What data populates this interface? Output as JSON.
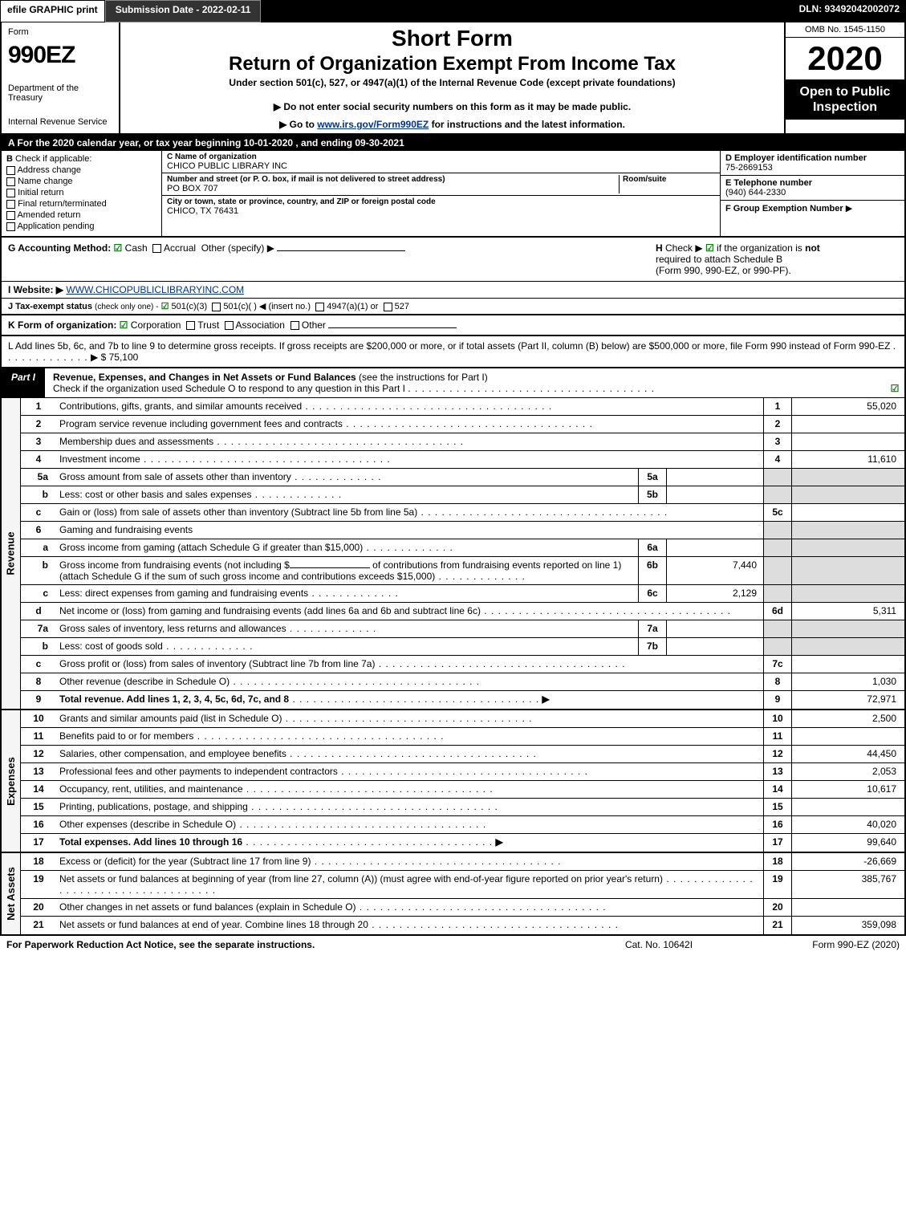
{
  "top": {
    "efile": "efile GRAPHIC print",
    "submission": "Submission Date - 2022-02-11",
    "dln": "DLN: 93492042002072"
  },
  "header": {
    "form": "Form",
    "formnum": "990EZ",
    "dept": "Department of the Treasury",
    "irs": "Internal Revenue Service",
    "short": "Short Form",
    "return": "Return of Organization Exempt From Income Tax",
    "under": "Under section 501(c), 527, or 4947(a)(1) of the Internal Revenue Code (except private foundations)",
    "note1": "▶ Do not enter social security numbers on this form as it may be made public.",
    "note2_pre": "▶ Go to ",
    "note2_link": "www.irs.gov/Form990EZ",
    "note2_post": " for instructions and the latest information.",
    "omb": "OMB No. 1545-1150",
    "year": "2020",
    "open": "Open to Public Inspection"
  },
  "lineA": "A For the 2020 calendar year, or tax year beginning 10-01-2020 , and ending 09-30-2021",
  "b": {
    "lbl": "B",
    "check": "Check if applicable:",
    "opts": [
      "Address change",
      "Name change",
      "Initial return",
      "Final return/terminated",
      "Amended return",
      "Application pending"
    ]
  },
  "c": {
    "name_lbl": "C Name of organization",
    "name": "CHICO PUBLIC LIBRARY INC",
    "addr_lbl": "Number and street (or P. O. box, if mail is not delivered to street address)",
    "addr": "PO BOX 707",
    "room_lbl": "Room/suite",
    "city_lbl": "City or town, state or province, country, and ZIP or foreign postal code",
    "city": "CHICO, TX  76431"
  },
  "d": {
    "ein_lbl": "D Employer identification number",
    "ein": "75-2669153",
    "tel_lbl": "E Telephone number",
    "tel": "(940) 644-2330",
    "group_lbl": "F Group Exemption Number",
    "arrow": "▶"
  },
  "g": {
    "lbl": "G Accounting Method:",
    "cash": "Cash",
    "accrual": "Accrual",
    "other": "Other (specify) ▶",
    "h_lbl": "H",
    "h_txt1": "Check ▶",
    "h_txt2": "if the organization is",
    "h_not": "not",
    "h_txt3": "required to attach Schedule B",
    "h_txt4": "(Form 990, 990-EZ, or 990-PF)."
  },
  "i": {
    "lbl": "I Website: ▶",
    "url": "WWW.CHICOPUBLICLIBRARYINC.COM"
  },
  "j": {
    "lbl": "J Tax-exempt status",
    "sub": "(check only one) -",
    "o1": "501(c)(3)",
    "o2": "501(c)(  ) ◀ (insert no.)",
    "o3": "4947(a)(1) or",
    "o4": "527"
  },
  "k": {
    "lbl": "K Form of organization:",
    "o1": "Corporation",
    "o2": "Trust",
    "o3": "Association",
    "o4": "Other"
  },
  "l": {
    "txt": "L Add lines 5b, 6c, and 7b to line 9 to determine gross receipts. If gross receipts are $200,000 or more, or if total assets (Part II, column (B) below) are $500,000 or more, file Form 990 instead of Form 990-EZ",
    "arrow": "▶",
    "amt": "$ 75,100"
  },
  "part1": {
    "tag": "Part I",
    "title": "Revenue, Expenses, and Changes in Net Assets or Fund Balances",
    "paren": "(see the instructions for Part I)",
    "check": "Check if the organization used Schedule O to respond to any question in this Part I"
  },
  "rev": [
    {
      "n": "1",
      "t": "Contributions, gifts, grants, and similar amounts received",
      "c": "1",
      "v": "55,020"
    },
    {
      "n": "2",
      "t": "Program service revenue including government fees and contracts",
      "c": "2",
      "v": ""
    },
    {
      "n": "3",
      "t": "Membership dues and assessments",
      "c": "3",
      "v": ""
    },
    {
      "n": "4",
      "t": "Investment income",
      "c": "4",
      "v": "11,610"
    }
  ],
  "rev5a": {
    "n": "5a",
    "t": "Gross amount from sale of assets other than inventory",
    "mc": "5a"
  },
  "rev5b": {
    "n": "b",
    "t": "Less: cost or other basis and sales expenses",
    "mc": "5b"
  },
  "rev5c": {
    "n": "c",
    "t": "Gain or (loss) from sale of assets other than inventory (Subtract line 5b from line 5a)",
    "c": "5c",
    "v": ""
  },
  "rev6": {
    "n": "6",
    "t": "Gaming and fundraising events"
  },
  "rev6a": {
    "n": "a",
    "t": "Gross income from gaming (attach Schedule G if greater than $15,000)",
    "mc": "6a"
  },
  "rev6b": {
    "n": "b",
    "t1": "Gross income from fundraising events (not including $",
    "t2": "of contributions from fundraising events reported on line 1) (attach Schedule G if the sum of such gross income and contributions exceeds $15,000)",
    "mc": "6b",
    "mv": "7,440"
  },
  "rev6c": {
    "n": "c",
    "t": "Less: direct expenses from gaming and fundraising events",
    "mc": "6c",
    "mv": "2,129"
  },
  "rev6d": {
    "n": "d",
    "t": "Net income or (loss) from gaming and fundraising events (add lines 6a and 6b and subtract line 6c)",
    "c": "6d",
    "v": "5,311"
  },
  "rev7a": {
    "n": "7a",
    "t": "Gross sales of inventory, less returns and allowances",
    "mc": "7a"
  },
  "rev7b": {
    "n": "b",
    "t": "Less: cost of goods sold",
    "mc": "7b"
  },
  "rev7c": {
    "n": "c",
    "t": "Gross profit or (loss) from sales of inventory (Subtract line 7b from line 7a)",
    "c": "7c",
    "v": ""
  },
  "rev8": {
    "n": "8",
    "t": "Other revenue (describe in Schedule O)",
    "c": "8",
    "v": "1,030"
  },
  "rev9": {
    "n": "9",
    "t": "Total revenue. Add lines 1, 2, 3, 4, 5c, 6d, 7c, and 8",
    "c": "9",
    "v": "72,971",
    "bold": true
  },
  "exp": [
    {
      "n": "10",
      "t": "Grants and similar amounts paid (list in Schedule O)",
      "c": "10",
      "v": "2,500"
    },
    {
      "n": "11",
      "t": "Benefits paid to or for members",
      "c": "11",
      "v": ""
    },
    {
      "n": "12",
      "t": "Salaries, other compensation, and employee benefits",
      "c": "12",
      "v": "44,450"
    },
    {
      "n": "13",
      "t": "Professional fees and other payments to independent contractors",
      "c": "13",
      "v": "2,053"
    },
    {
      "n": "14",
      "t": "Occupancy, rent, utilities, and maintenance",
      "c": "14",
      "v": "10,617"
    },
    {
      "n": "15",
      "t": "Printing, publications, postage, and shipping",
      "c": "15",
      "v": ""
    },
    {
      "n": "16",
      "t": "Other expenses (describe in Schedule O)",
      "c": "16",
      "v": "40,020"
    },
    {
      "n": "17",
      "t": "Total expenses. Add lines 10 through 16",
      "c": "17",
      "v": "99,640",
      "bold": true,
      "arrow": true
    }
  ],
  "net": [
    {
      "n": "18",
      "t": "Excess or (deficit) for the year (Subtract line 17 from line 9)",
      "c": "18",
      "v": "-26,669"
    },
    {
      "n": "19",
      "t": "Net assets or fund balances at beginning of year (from line 27, column (A)) (must agree with end-of-year figure reported on prior year's return)",
      "c": "19",
      "v": "385,767"
    },
    {
      "n": "20",
      "t": "Other changes in net assets or fund balances (explain in Schedule O)",
      "c": "20",
      "v": ""
    },
    {
      "n": "21",
      "t": "Net assets or fund balances at end of year. Combine lines 18 through 20",
      "c": "21",
      "v": "359,098"
    }
  ],
  "sides": {
    "rev": "Revenue",
    "exp": "Expenses",
    "net": "Net Assets"
  },
  "footer": {
    "l": "For Paperwork Reduction Act Notice, see the separate instructions.",
    "m": "Cat. No. 10642I",
    "r": "Form 990-EZ (2020)"
  }
}
